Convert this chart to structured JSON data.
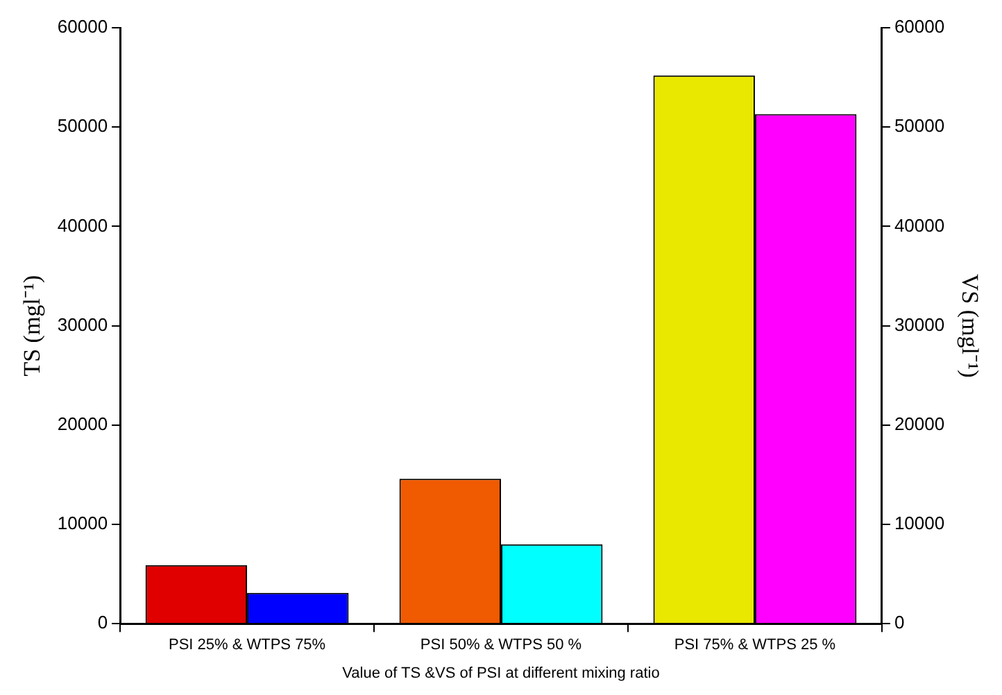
{
  "chart_data": {
    "type": "bar",
    "xlabel": "Value of TS &VS of PSI at different mixing ratio",
    "ylabel": "TS (mgl⁻¹)",
    "y2label": "VS (mgl⁻¹)",
    "categories": [
      "PSI 25% & WTPS 75%",
      "PSI 50% & WTPS 50 %",
      "PSI 75% & WTPS 25 %"
    ],
    "series": [
      {
        "colors": [
          "#e00000",
          "#f05a00",
          "#e8e800"
        ],
        "values": [
          5900,
          14600,
          55200
        ]
      },
      {
        "colors": [
          "#0000ff",
          "#00ffff",
          "#ff00ff"
        ],
        "values": [
          3100,
          8000,
          51300
        ],
        "axis": "y2"
      }
    ],
    "ylim": [
      0,
      60000
    ],
    "yticks": [
      0,
      10000,
      20000,
      30000,
      40000,
      50000,
      60000
    ],
    "y2lim": [
      0,
      60000
    ],
    "y2ticks": [
      0,
      10000,
      20000,
      30000,
      40000,
      50000,
      60000
    ],
    "grid": false,
    "legend": false
  }
}
